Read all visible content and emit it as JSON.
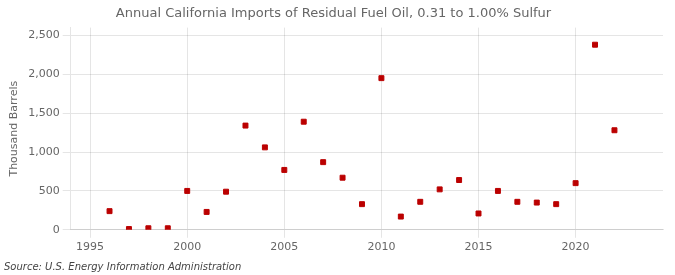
{
  "chart_data": {
    "type": "scatter",
    "title": "Annual California Imports of Residual Fuel Oil, 0.31 to 1.00% Sulfur",
    "ylabel": "Thousand Barrels",
    "annotations": [
      "Source: U.S. Energy Information Administration"
    ],
    "x": [
      1996,
      1997,
      1998,
      1999,
      2000,
      2001,
      2002,
      2003,
      2004,
      2005,
      2006,
      2007,
      2008,
      2009,
      2010,
      2011,
      2012,
      2013,
      2014,
      2015,
      2016,
      2017,
      2018,
      2019,
      2020,
      2021,
      2022
    ],
    "values": [
      240,
      10,
      20,
      20,
      500,
      230,
      490,
      1340,
      1060,
      770,
      1390,
      870,
      670,
      330,
      1950,
      170,
      360,
      520,
      640,
      210,
      500,
      360,
      350,
      330,
      600,
      2380,
      1280
    ],
    "color": "#bb0000",
    "marker": "square",
    "xlim": [
      1994.0,
      2024.5
    ],
    "ylim": [
      0,
      2600
    ],
    "xticks": [
      1995,
      2000,
      2005,
      2010,
      2015,
      2020
    ],
    "yticks": [
      0,
      500,
      {
        "value": 1000,
        "label": "1,000"
      },
      {
        "value": 1500,
        "label": "1,500"
      },
      {
        "value": 2000,
        "label": "2,000"
      },
      {
        "value": 2500,
        "label": "2,500"
      }
    ],
    "grid": true
  }
}
